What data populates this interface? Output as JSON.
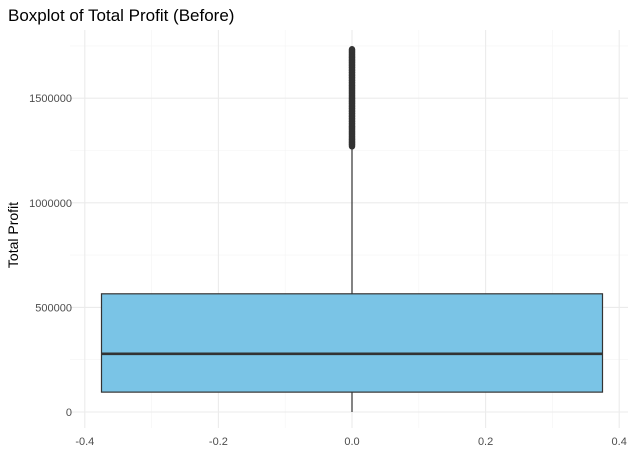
{
  "chart_data": {
    "type": "boxplot",
    "title": "Boxplot of Total Profit (Before)",
    "xlabel": "",
    "ylabel": "Total Profit",
    "xlim": [
      -0.4,
      0.4
    ],
    "ylim": [
      0,
      1750000
    ],
    "x_ticks": [
      -0.4,
      -0.2,
      0.0,
      0.2,
      0.4
    ],
    "x_tick_labels": [
      "-0.4",
      "-0.2",
      "0.0",
      "0.2",
      "0.4"
    ],
    "y_ticks": [
      0,
      500000,
      1000000,
      1500000
    ],
    "y_tick_labels": [
      "0",
      "500000",
      "1000000",
      "1500000"
    ],
    "grid": true,
    "box": {
      "x_center": 0,
      "x_range": [
        -0.375,
        0.375
      ],
      "min": 0,
      "q1": 95000,
      "median": 278000,
      "q3": 565000,
      "whisker_high": 1270000,
      "outlier_range": [
        1270000,
        1735000
      ]
    },
    "colors": {
      "box_fill": "#7ac4e6",
      "box_stroke": "#333333",
      "median": "#333333",
      "outliers": "#333333",
      "grid_major": "#ebebeb",
      "grid_minor": "#f4f4f4"
    }
  }
}
